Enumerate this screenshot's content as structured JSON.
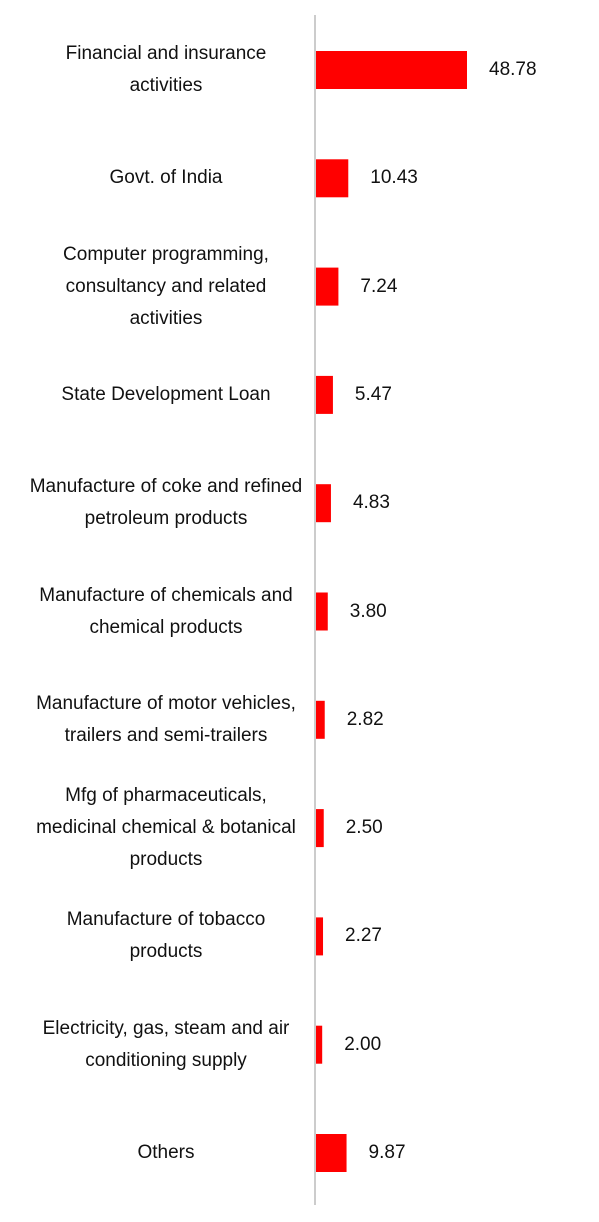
{
  "chart_data": {
    "type": "bar",
    "orientation": "horizontal",
    "categories": [
      "Financial and insurance activities",
      "Govt. of India",
      "Computer programming, consultancy and related activities",
      "State Development Loan",
      "Manufacture of coke and refined petroleum products",
      "Manufacture of chemicals and chemical products",
      "Manufacture of motor vehicles, trailers and semi-trailers",
      "Mfg of pharmaceuticals, medicinal chemical & botanical products",
      "Manufacture of tobacco products",
      "Electricity, gas, steam and air conditioning supply",
      "Others"
    ],
    "values": [
      48.78,
      10.43,
      7.24,
      5.47,
      4.83,
      3.8,
      2.82,
      2.5,
      2.27,
      2.0,
      9.87
    ],
    "value_labels": [
      "48.78",
      "10.43",
      "7.24",
      "5.47",
      "4.83",
      "3.80",
      "2.82",
      "2.50",
      "2.27",
      "2.00",
      "9.87"
    ],
    "color": "#ff0000"
  }
}
